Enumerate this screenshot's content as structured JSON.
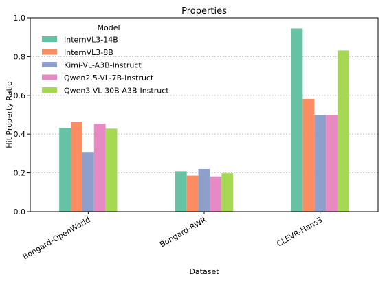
{
  "chart_data": {
    "type": "bar",
    "title": "Properties",
    "xlabel": "Dataset",
    "ylabel": "Hit Property Ratio",
    "ylim": [
      0,
      1.0
    ],
    "yticks": [
      "0.0",
      "0.2",
      "0.4",
      "0.6",
      "0.8",
      "1.0"
    ],
    "grid": "horizontal dotted",
    "legend_title": "Model",
    "legend_position": "top-left",
    "categories": [
      "Bongard-OpenWorld",
      "Bongard-RWR",
      "CLEVR-Hans3"
    ],
    "series": [
      {
        "name": "InternVL3-14B",
        "color": "#66c2a5",
        "values": [
          0.432,
          0.208,
          0.945
        ]
      },
      {
        "name": "InternVL3-8B",
        "color": "#fc8d62",
        "values": [
          0.462,
          0.186,
          0.582
        ]
      },
      {
        "name": "Kimi-VL-A3B-Instruct",
        "color": "#8da0cb",
        "values": [
          0.308,
          0.22,
          0.5
        ]
      },
      {
        "name": "Qwen2.5-VL-7B-Instruct",
        "color": "#e78ac3",
        "values": [
          0.453,
          0.182,
          0.5
        ]
      },
      {
        "name": "Qwen3-VL-30B-A3B-Instruct",
        "color": "#a6d854",
        "values": [
          0.428,
          0.198,
          0.832
        ]
      }
    ]
  }
}
